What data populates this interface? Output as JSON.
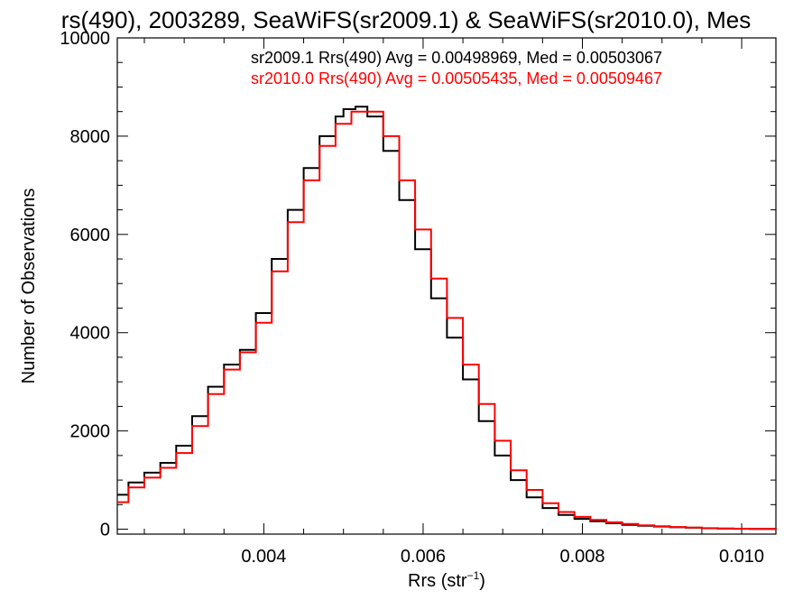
{
  "chart_data": {
    "type": "line",
    "title": "rs(490), 2003289, SeaWiFS(sr2009.1) & SeaWiFS(sr2010.0), Mes",
    "xlabel": "Rrs (str",
    "xlabel_sup": "−1",
    "xlabel_close": ")",
    "ylabel": "Number of Observations",
    "xlim": [
      0.00216,
      0.01043
    ],
    "ylim": [
      -100,
      10000
    ],
    "x_ticks": [
      0.004,
      0.006,
      0.008,
      0.01
    ],
    "x_tick_labels": [
      "0.004",
      "0.006",
      "0.008",
      "0.010"
    ],
    "y_ticks": [
      0,
      2000,
      4000,
      6000,
      8000,
      10000
    ],
    "y_tick_labels": [
      "0",
      "2000",
      "4000",
      "6000",
      "8000",
      "10000"
    ],
    "legend_placement": "top-right",
    "series": [
      {
        "name": "sr2009.1 Rrs(490) Avg = 0.00498969, Med = 0.00503067",
        "color": "#000000",
        "x": [
          0.00216,
          0.0023,
          0.0025,
          0.0027,
          0.0029,
          0.0031,
          0.0033,
          0.0035,
          0.0037,
          0.0039,
          0.0041,
          0.0043,
          0.0045,
          0.0047,
          0.0049,
          0.005,
          0.00515,
          0.0053,
          0.0055,
          0.0057,
          0.0059,
          0.0061,
          0.0063,
          0.0065,
          0.0067,
          0.0069,
          0.0071,
          0.0073,
          0.0075,
          0.0077,
          0.0079,
          0.0081,
          0.0083,
          0.0085,
          0.0087,
          0.0089,
          0.0091,
          0.0093,
          0.0095,
          0.0097,
          0.0099,
          0.0101,
          0.01043
        ],
        "values": [
          700,
          950,
          1150,
          1350,
          1700,
          2300,
          2900,
          3350,
          3650,
          4400,
          5500,
          6500,
          7350,
          8000,
          8400,
          8550,
          8600,
          8400,
          7700,
          6700,
          5700,
          4700,
          3900,
          3050,
          2200,
          1500,
          1000,
          650,
          430,
          290,
          210,
          160,
          120,
          90,
          70,
          55,
          40,
          30,
          20,
          12,
          8,
          5,
          2
        ]
      },
      {
        "name": "sr2010.0 Rrs(490) Avg = 0.00505435, Med = 0.00509467",
        "color": "#ff0000",
        "x": [
          0.00216,
          0.0023,
          0.0025,
          0.0027,
          0.0029,
          0.0031,
          0.0033,
          0.0035,
          0.0037,
          0.0039,
          0.0041,
          0.0043,
          0.0045,
          0.0047,
          0.0049,
          0.0051,
          0.0053,
          0.0055,
          0.0057,
          0.0059,
          0.0061,
          0.0063,
          0.0065,
          0.0067,
          0.0069,
          0.0071,
          0.0073,
          0.0075,
          0.0077,
          0.0079,
          0.0081,
          0.0083,
          0.0085,
          0.0087,
          0.0089,
          0.0091,
          0.0093,
          0.0095,
          0.0097,
          0.0099,
          0.0101,
          0.01043
        ],
        "values": [
          550,
          850,
          1050,
          1250,
          1550,
          2100,
          2750,
          3250,
          3600,
          4200,
          5250,
          6250,
          7100,
          7800,
          8250,
          8500,
          8500,
          8000,
          7100,
          6100,
          5100,
          4300,
          3350,
          2550,
          1800,
          1200,
          800,
          530,
          350,
          250,
          190,
          140,
          105,
          80,
          60,
          45,
          33,
          22,
          15,
          10,
          6,
          3
        ]
      }
    ]
  }
}
